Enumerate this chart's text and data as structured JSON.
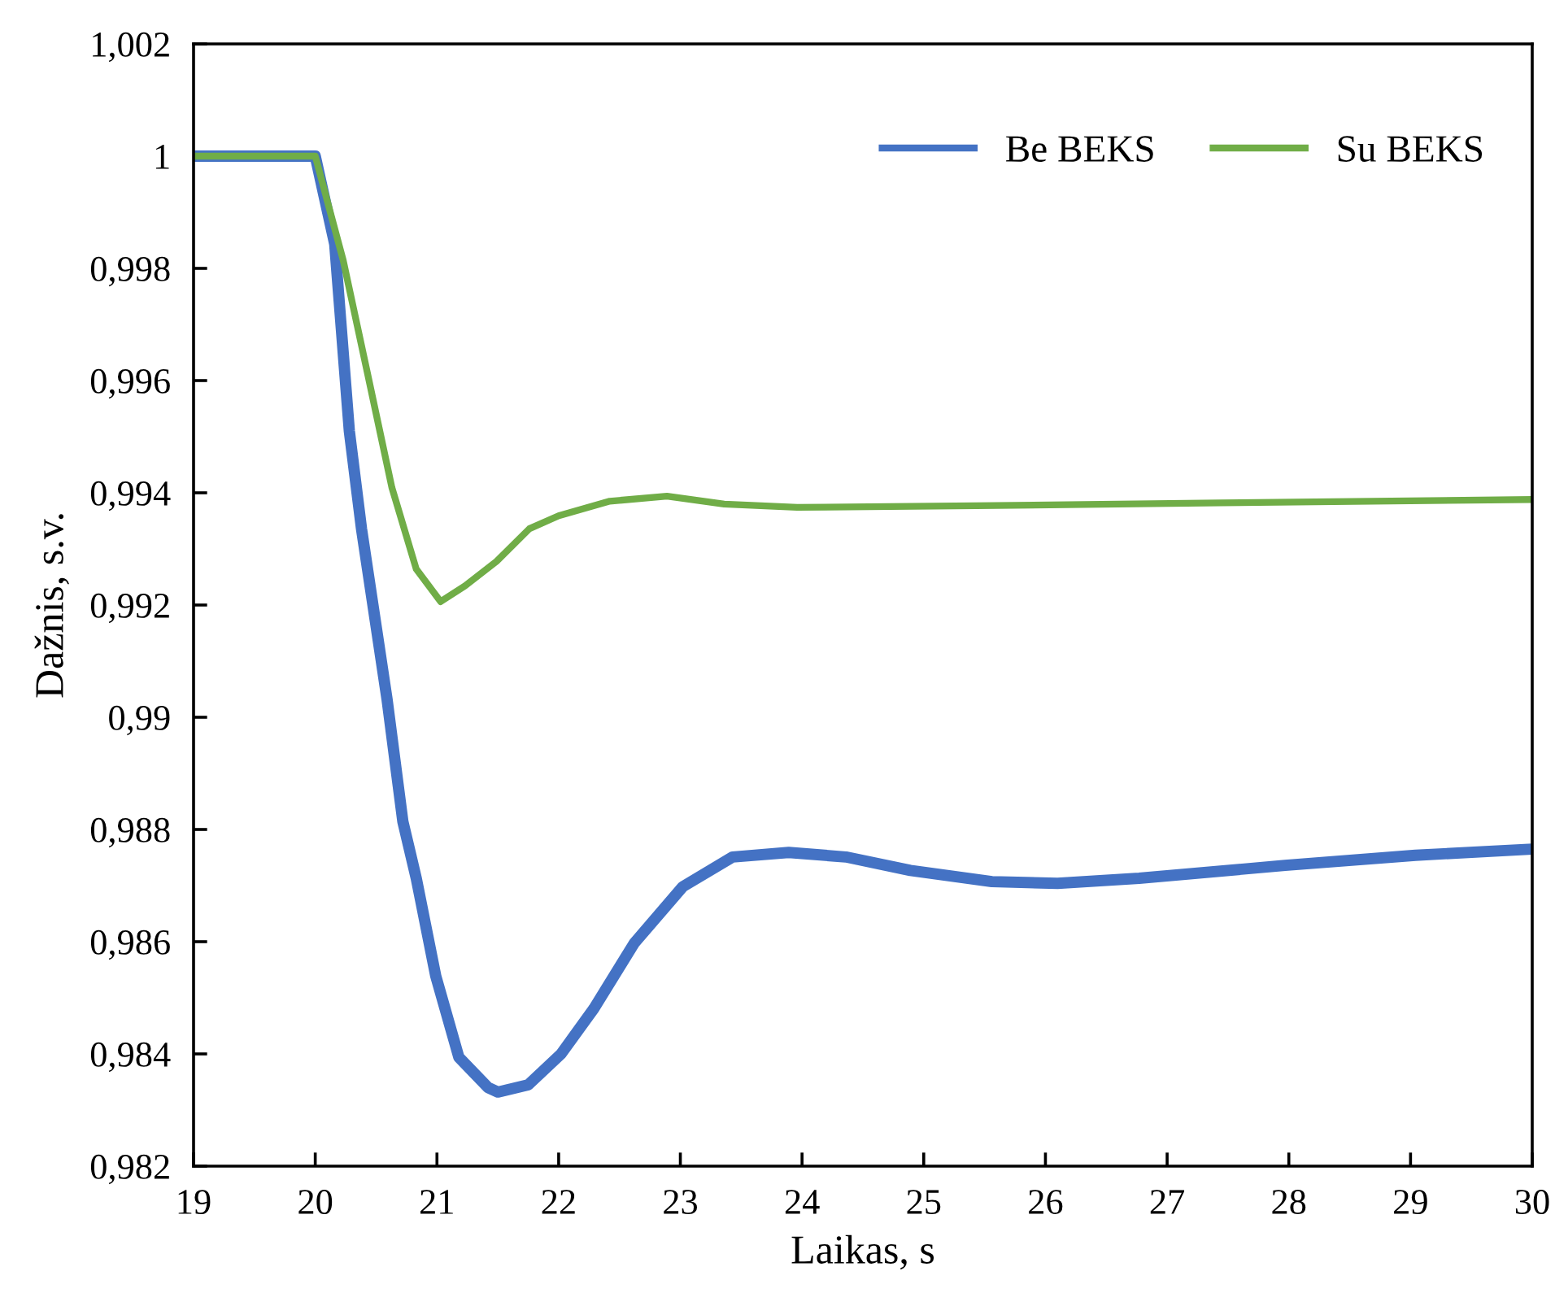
{
  "chart_data": {
    "type": "line",
    "xlabel": "Laikas, s",
    "ylabel": "Dažnis, s.v.",
    "xlim": [
      19,
      30
    ],
    "xticks": [
      19,
      20,
      21,
      22,
      23,
      24,
      25,
      26,
      27,
      28,
      29,
      30
    ],
    "ylim": [
      0.982,
      1.002
    ],
    "yticks": [
      {
        "value": 0.982,
        "label": "0,982"
      },
      {
        "value": 0.984,
        "label": "0,984"
      },
      {
        "value": 0.986,
        "label": "0,986"
      },
      {
        "value": 0.988,
        "label": "0,988"
      },
      {
        "value": 0.99,
        "label": "0,99"
      },
      {
        "value": 0.992,
        "label": "0,992"
      },
      {
        "value": 0.994,
        "label": "0,994"
      },
      {
        "value": 0.996,
        "label": "0,996"
      },
      {
        "value": 0.998,
        "label": "0,998"
      },
      {
        "value": 1,
        "label": "1"
      },
      {
        "value": 1.002,
        "label": "1,002"
      }
    ],
    "grid": false,
    "legend": "top right",
    "marker": "none",
    "line_style": "solid",
    "series": [
      {
        "name": "Be BEKS",
        "color": "#4472c4",
        "x": [
          19,
          20,
          20.16,
          20.28,
          20.38,
          20.59,
          20.72,
          20.83,
          20.99,
          21.18,
          21.42,
          21.5,
          21.75,
          22.02,
          22.29,
          22.62,
          23.02,
          23.43,
          23.89,
          24.36,
          24.89,
          25.56,
          26.1,
          26.77,
          27.97,
          29.04,
          30
        ],
        "values": [
          1.0,
          1.0,
          0.99843,
          0.9951,
          0.99336,
          0.99032,
          0.98814,
          0.98713,
          0.98539,
          0.98394,
          0.9834,
          0.98332,
          0.98345,
          0.984,
          0.98481,
          0.98597,
          0.98698,
          0.98751,
          0.98759,
          0.98751,
          0.98727,
          0.98707,
          0.98704,
          0.98713,
          0.98736,
          0.98754,
          0.98765
        ]
      },
      {
        "name": "Su BEKS",
        "color": "#70ad47",
        "x": [
          19,
          20,
          20.23,
          20.43,
          20.63,
          20.83,
          21.03,
          21.23,
          21.49,
          21.76,
          22.0,
          22.42,
          22.89,
          23.36,
          23.96,
          25.43,
          27.44,
          30
        ],
        "values": [
          1.0,
          1.0,
          0.99814,
          0.99612,
          0.99409,
          0.99264,
          0.99206,
          0.99234,
          0.99278,
          0.99336,
          0.99359,
          0.99385,
          0.99394,
          0.9938,
          0.99374,
          0.99377,
          0.99382,
          0.99388
        ]
      }
    ]
  }
}
